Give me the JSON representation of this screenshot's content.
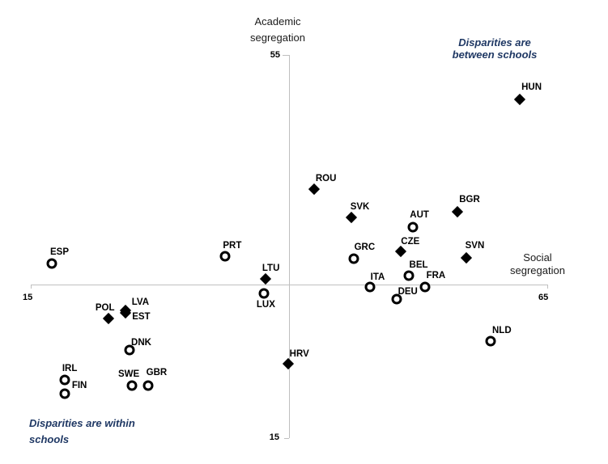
{
  "chart_data": {
    "type": "scatter",
    "title": "",
    "x_axis": {
      "label": "Social segregation",
      "min_label": "15",
      "max_label": "65",
      "range": [
        15,
        65
      ]
    },
    "y_axis": {
      "label": "Academic segregation",
      "min_label": "15",
      "max_label": "55",
      "range": [
        15,
        55
      ]
    },
    "axes_cross_at": {
      "x": 40,
      "y": 31
    },
    "grid": false,
    "annotations": [
      {
        "text": "Disparities are between schools",
        "position": "top-right",
        "color": "#1F3864"
      },
      {
        "text": "Disparities are within schools",
        "position": "bottom-left",
        "color": "#1F3864"
      }
    ],
    "series": [
      {
        "name": "filled-diamond-countries",
        "marker": "filled-diamond",
        "color": "#000000",
        "points": [
          {
            "label": "HUN",
            "x": 62.3,
            "y": 50.4,
            "ldx": 15,
            "ldy": -15
          },
          {
            "label": "ROU",
            "x": 42.4,
            "y": 41.0,
            "ldx": 15,
            "ldy": -13
          },
          {
            "label": "BGR",
            "x": 56.3,
            "y": 38.6,
            "ldx": 15,
            "ldy": -15
          },
          {
            "label": "SVK",
            "x": 46.0,
            "y": 38.0,
            "ldx": 11,
            "ldy": -13
          },
          {
            "label": "CZE",
            "x": 50.8,
            "y": 34.5,
            "ldx": 12,
            "ldy": -12
          },
          {
            "label": "SVN",
            "x": 57.2,
            "y": 33.8,
            "ldx": 10,
            "ldy": -15
          },
          {
            "label": "LTU",
            "x": 37.7,
            "y": 31.6,
            "ldx": 7,
            "ldy": -13
          },
          {
            "label": "LVA",
            "x": 24.2,
            "y": 28.3,
            "ldx": 18,
            "ldy": -10
          },
          {
            "label": "EST",
            "x": 24.2,
            "y": 28.1,
            "ldx": 19,
            "ldy": 5
          },
          {
            "label": "POL",
            "x": 22.5,
            "y": 27.5,
            "ldx": -4,
            "ldy": -13
          },
          {
            "label": "HRV",
            "x": 39.9,
            "y": 22.8,
            "ldx": 14,
            "ldy": -12
          }
        ]
      },
      {
        "name": "open-circle-countries",
        "marker": "open-circle",
        "color": "#000000",
        "points": [
          {
            "label": "AUT",
            "x": 52.0,
            "y": 37.0,
            "ldx": 8,
            "ldy": -15
          },
          {
            "label": "PRT",
            "x": 33.8,
            "y": 34.0,
            "ldx": 9,
            "ldy": -13
          },
          {
            "label": "GRC",
            "x": 46.3,
            "y": 33.7,
            "ldx": 13,
            "ldy": -14
          },
          {
            "label": "ESP",
            "x": 17.0,
            "y": 33.2,
            "ldx": 10,
            "ldy": -14
          },
          {
            "label": "BEL",
            "x": 51.6,
            "y": 32.0,
            "ldx": 12,
            "ldy": -13
          },
          {
            "label": "ITA",
            "x": 47.8,
            "y": 30.8,
            "ldx": 10,
            "ldy": -12
          },
          {
            "label": "FRA",
            "x": 53.2,
            "y": 30.8,
            "ldx": 13,
            "ldy": -14
          },
          {
            "label": "LUX",
            "x": 37.6,
            "y": 30.1,
            "ldx": 2,
            "ldy": 14
          },
          {
            "label": "DEU",
            "x": 50.4,
            "y": 29.5,
            "ldx": 14,
            "ldy": -9
          },
          {
            "label": "NLD",
            "x": 59.5,
            "y": 25.1,
            "ldx": 14,
            "ldy": -13
          },
          {
            "label": "DNK",
            "x": 24.6,
            "y": 24.2,
            "ldx": 14,
            "ldy": -9
          },
          {
            "label": "IRL",
            "x": 18.3,
            "y": 21.1,
            "ldx": 6,
            "ldy": -14
          },
          {
            "label": "SWE",
            "x": 24.8,
            "y": 20.5,
            "ldx": -4,
            "ldy": -14
          },
          {
            "label": "GBR",
            "x": 26.4,
            "y": 20.5,
            "ldx": 10,
            "ldy": -16
          },
          {
            "label": "FIN",
            "x": 18.3,
            "y": 19.6,
            "ldx": 18,
            "ldy": -10
          }
        ]
      }
    ]
  }
}
